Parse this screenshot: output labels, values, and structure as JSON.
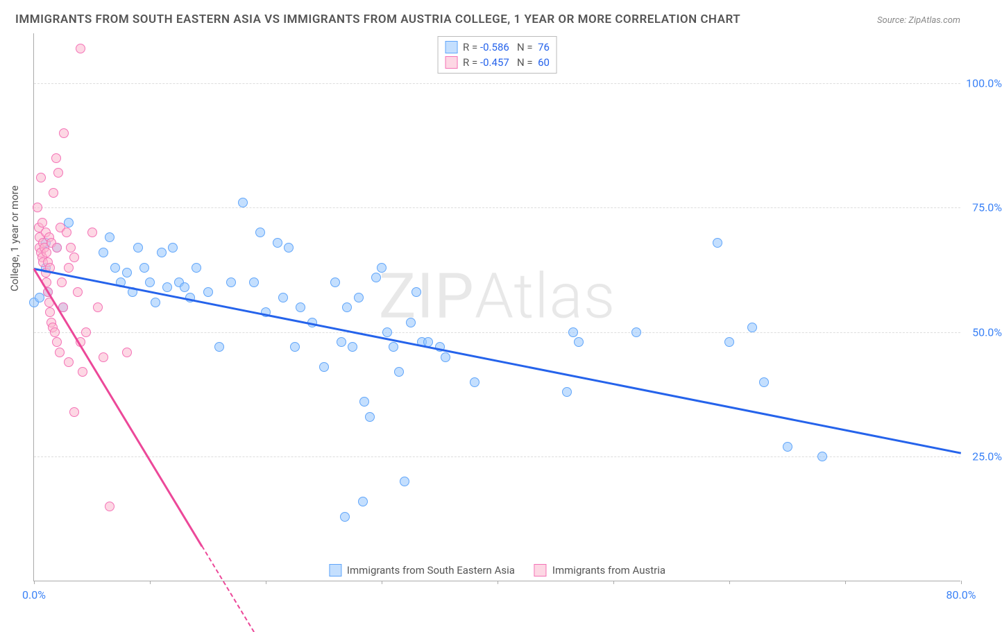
{
  "title": "IMMIGRANTS FROM SOUTH EASTERN ASIA VS IMMIGRANTS FROM AUSTRIA COLLEGE, 1 YEAR OR MORE CORRELATION CHART",
  "source": "Source: ZipAtlas.com",
  "watermark_a": "ZIP",
  "watermark_b": "Atlas",
  "y_axis_label": "College, 1 year or more",
  "chart": {
    "type": "scatter",
    "background_color": "#ffffff",
    "grid_color": "#dddddd",
    "axis_color": "#aaaaaa",
    "tick_label_color": "#3b82f6",
    "xlim": [
      0,
      80
    ],
    "ylim": [
      0,
      110
    ],
    "x_ticks": [
      0,
      10,
      20,
      30,
      40,
      50,
      60,
      70,
      80
    ],
    "x_tick_labels": {
      "0": "0.0%",
      "80": "80.0%"
    },
    "y_ticks": [
      25,
      50,
      75,
      100
    ],
    "y_tick_labels": {
      "25": "25.0%",
      "50": "50.0%",
      "75": "75.0%",
      "100": "100.0%"
    },
    "series": [
      {
        "name": "Immigrants from South Eastern Asia",
        "marker_fill": "rgba(147,197,253,0.55)",
        "marker_stroke": "#60a5fa",
        "marker_size": 14,
        "line_color": "#2563eb",
        "line_width": 2.5,
        "R": "-0.586",
        "N": "76",
        "trend": {
          "x1": 0,
          "y1": 63,
          "x2": 80,
          "y2": 26,
          "dash_from_x": null
        },
        "points": [
          [
            0,
            56
          ],
          [
            0.5,
            57
          ],
          [
            1,
            68
          ],
          [
            1,
            63
          ],
          [
            1.2,
            58
          ],
          [
            2,
            67
          ],
          [
            2.5,
            55
          ],
          [
            3,
            72
          ],
          [
            6,
            66
          ],
          [
            6.5,
            69
          ],
          [
            7,
            63
          ],
          [
            7.5,
            60
          ],
          [
            8,
            62
          ],
          [
            8.5,
            58
          ],
          [
            9,
            67
          ],
          [
            9.5,
            63
          ],
          [
            10,
            60
          ],
          [
            10.5,
            56
          ],
          [
            11,
            66
          ],
          [
            11.5,
            59
          ],
          [
            12,
            67
          ],
          [
            12.5,
            60
          ],
          [
            13,
            59
          ],
          [
            13.5,
            57
          ],
          [
            14,
            63
          ],
          [
            15,
            58
          ],
          [
            16,
            47
          ],
          [
            17,
            60
          ],
          [
            18,
            76
          ],
          [
            19,
            60
          ],
          [
            19.5,
            70
          ],
          [
            20,
            54
          ],
          [
            21,
            68
          ],
          [
            21.5,
            57
          ],
          [
            22,
            67
          ],
          [
            22.5,
            47
          ],
          [
            23,
            55
          ],
          [
            24,
            52
          ],
          [
            25,
            43
          ],
          [
            26,
            60
          ],
          [
            26.5,
            48
          ],
          [
            26.8,
            13
          ],
          [
            27,
            55
          ],
          [
            27.5,
            47
          ],
          [
            28,
            57
          ],
          [
            28.4,
            16
          ],
          [
            28.5,
            36
          ],
          [
            29,
            33
          ],
          [
            29.5,
            61
          ],
          [
            30,
            63
          ],
          [
            30.5,
            50
          ],
          [
            31,
            47
          ],
          [
            31.5,
            42
          ],
          [
            32,
            20
          ],
          [
            32.5,
            52
          ],
          [
            33,
            58
          ],
          [
            33.5,
            48
          ],
          [
            34,
            48
          ],
          [
            35,
            47
          ],
          [
            35.5,
            45
          ],
          [
            38,
            40
          ],
          [
            46,
            38
          ],
          [
            46.5,
            50
          ],
          [
            47,
            48
          ],
          [
            52,
            50
          ],
          [
            59,
            68
          ],
          [
            60,
            48
          ],
          [
            62,
            51
          ],
          [
            63,
            40
          ],
          [
            65,
            27
          ],
          [
            68,
            25
          ]
        ]
      },
      {
        "name": "Immigrants from Austria",
        "marker_fill": "rgba(251,182,206,0.55)",
        "marker_stroke": "#f472b6",
        "marker_size": 14,
        "line_color": "#ec4899",
        "line_width": 2.5,
        "R": "-0.457",
        "N": "60",
        "trend": {
          "x1": 0,
          "y1": 63,
          "x2": 19,
          "y2": -10,
          "dash_from_x": 14.5
        },
        "points": [
          [
            0.3,
            75
          ],
          [
            0.4,
            71
          ],
          [
            0.5,
            69
          ],
          [
            0.5,
            67
          ],
          [
            0.6,
            66
          ],
          [
            0.6,
            81
          ],
          [
            0.7,
            65
          ],
          [
            0.7,
            72
          ],
          [
            0.8,
            64
          ],
          [
            0.8,
            68
          ],
          [
            0.9,
            67
          ],
          [
            1.0,
            62
          ],
          [
            1.0,
            70
          ],
          [
            1.1,
            60
          ],
          [
            1.1,
            66
          ],
          [
            1.2,
            58
          ],
          [
            1.2,
            64
          ],
          [
            1.3,
            56
          ],
          [
            1.3,
            69
          ],
          [
            1.4,
            54
          ],
          [
            1.4,
            63
          ],
          [
            1.5,
            52
          ],
          [
            1.5,
            68
          ],
          [
            1.6,
            51
          ],
          [
            1.7,
            78
          ],
          [
            1.8,
            50
          ],
          [
            1.9,
            85
          ],
          [
            2.0,
            48
          ],
          [
            2.0,
            67
          ],
          [
            2.1,
            82
          ],
          [
            2.2,
            46
          ],
          [
            2.3,
            71
          ],
          [
            2.4,
            60
          ],
          [
            2.5,
            55
          ],
          [
            2.6,
            90
          ],
          [
            2.8,
            70
          ],
          [
            3.0,
            63
          ],
          [
            3.0,
            44
          ],
          [
            3.2,
            67
          ],
          [
            3.5,
            65
          ],
          [
            3.5,
            34
          ],
          [
            3.8,
            58
          ],
          [
            4.0,
            107
          ],
          [
            4.0,
            48
          ],
          [
            4.2,
            42
          ],
          [
            4.5,
            50
          ],
          [
            5.0,
            70
          ],
          [
            5.5,
            55
          ],
          [
            6.0,
            45
          ],
          [
            6.5,
            15
          ],
          [
            8.0,
            46
          ]
        ]
      }
    ],
    "legend_top": {
      "r_label": "R =",
      "n_label": "N =",
      "r_color": "#2563eb",
      "n_color": "#2563eb",
      "text_color": "#555"
    }
  }
}
